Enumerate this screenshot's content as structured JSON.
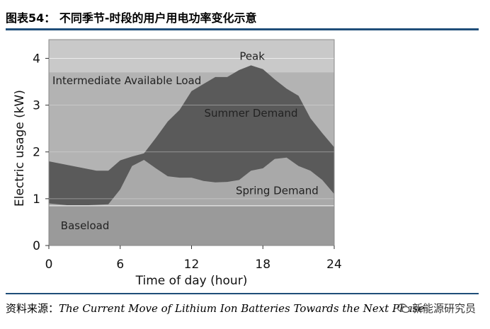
{
  "figure": {
    "title": "图表54： 不同季节-时段的用户用电功率变化示意",
    "source_label": "资料来源：",
    "source_text": "The Current Move of Lithium Ion Batteries Towards the Next Phase",
    "watermark": "新能源研究员"
  },
  "colors": {
    "rule": "#1f4e79",
    "plot_bg": "#c9c9c9",
    "baseload": "#9a9a9a",
    "intermediate": "#b3b3b3",
    "spring": "#a9a9a9",
    "summer": "#5a5a5a"
  },
  "chart_data": {
    "type": "area",
    "xlabel": "Time of day (hour)",
    "ylabel": "Electric usage (kW)",
    "xlim": [
      0,
      24
    ],
    "ylim": [
      0,
      4.4
    ],
    "xticks": [
      "0",
      "6",
      "12",
      "18",
      "24"
    ],
    "yticks": [
      "0",
      "1",
      "2",
      "3",
      "4"
    ],
    "annotations": {
      "peak": "Peak",
      "intermediate": "Intermediate Available Load",
      "summer": "Summer Demand",
      "spring": "Spring Demand",
      "baseload": "Baseload"
    },
    "baseload": 0.85,
    "intermediate_level": 3.7,
    "series": [
      {
        "name": "Spring Demand",
        "x": [
          0,
          2,
          4,
          5,
          6,
          7,
          8,
          9,
          10,
          11,
          12,
          13,
          14,
          15,
          16,
          17,
          18,
          19,
          20,
          21,
          22,
          23,
          24
        ],
        "values": [
          0.9,
          0.85,
          0.87,
          0.88,
          1.2,
          1.7,
          1.83,
          1.65,
          1.48,
          1.45,
          1.45,
          1.38,
          1.35,
          1.36,
          1.4,
          1.6,
          1.65,
          1.85,
          1.88,
          1.7,
          1.6,
          1.4,
          1.1
        ]
      },
      {
        "name": "Summer Demand",
        "x": [
          0,
          2,
          4,
          5,
          6,
          7,
          8,
          9,
          10,
          11,
          12,
          13,
          14,
          15,
          16,
          17,
          18,
          19,
          20,
          21,
          22,
          23,
          24
        ],
        "values": [
          1.8,
          1.7,
          1.6,
          1.6,
          1.82,
          1.9,
          1.97,
          2.3,
          2.65,
          2.9,
          3.3,
          3.45,
          3.6,
          3.6,
          3.75,
          3.85,
          3.77,
          3.55,
          3.35,
          3.2,
          2.72,
          2.4,
          2.1
        ]
      }
    ]
  }
}
